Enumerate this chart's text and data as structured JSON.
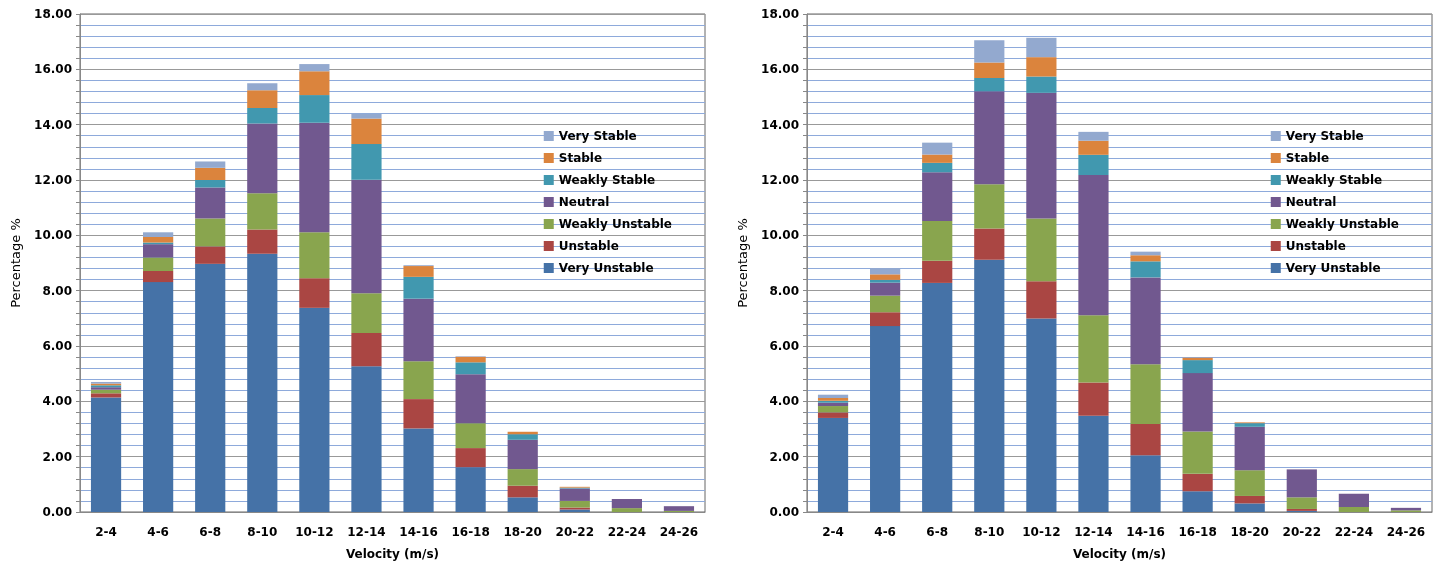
{
  "chart_data": [
    {
      "type": "bar",
      "stacked": true,
      "xlabel": "Velocity (m/s)",
      "ylabel": "Percentage %",
      "categories": [
        "2-4",
        "4-6",
        "6-8",
        "8-10",
        "10-12",
        "12-14",
        "14-16",
        "16-18",
        "18-20",
        "20-22",
        "22-24",
        "24-26"
      ],
      "series": [
        {
          "name": "Very Unstable",
          "color": "#4572a7",
          "values": [
            4.14,
            8.31,
            8.97,
            9.33,
            7.38,
            5.27,
            3.02,
            1.62,
            0.53,
            0.09,
            0,
            0
          ]
        },
        {
          "name": "Unstable",
          "color": "#aa4643",
          "values": [
            0.15,
            0.4,
            0.63,
            0.88,
            1.07,
            1.2,
            1.06,
            0.69,
            0.42,
            0.07,
            0,
            0
          ]
        },
        {
          "name": "Weakly Unstable",
          "color": "#89a54e",
          "values": [
            0.13,
            0.49,
            1.01,
            1.31,
            1.66,
            1.44,
            1.37,
            0.9,
            0.6,
            0.24,
            0.14,
            0.04
          ]
        },
        {
          "name": "Neutral",
          "color": "#71588f",
          "values": [
            0.09,
            0.48,
            1.12,
            2.52,
            3.96,
            4.1,
            2.26,
            1.77,
            1.06,
            0.45,
            0.33,
            0.17
          ]
        },
        {
          "name": "Weakly Stable",
          "color": "#4198af",
          "values": [
            0.07,
            0.06,
            0.27,
            0.56,
            1.0,
            1.29,
            0.79,
            0.43,
            0.2,
            0.03,
            0,
            0
          ]
        },
        {
          "name": "Stable",
          "color": "#db843d",
          "values": [
            0.06,
            0.2,
            0.44,
            0.64,
            0.86,
            0.92,
            0.39,
            0.2,
            0.09,
            0.03,
            0,
            0
          ]
        },
        {
          "name": "Very Stable",
          "color": "#93a9cf",
          "values": [
            0.06,
            0.17,
            0.23,
            0.26,
            0.26,
            0.17,
            0.03,
            0.02,
            0,
            0,
            0,
            0
          ]
        }
      ],
      "ylim": [
        0,
        18
      ],
      "yticks": [
        {
          "value": 0,
          "label": "0.00"
        },
        {
          "value": 0.4,
          "label": null
        },
        {
          "value": 0.8,
          "label": null
        },
        {
          "value": 1.2,
          "label": null
        },
        {
          "value": 1.6,
          "label": null
        },
        {
          "value": 2,
          "label": "2.00"
        },
        {
          "value": 2.4,
          "label": null
        },
        {
          "value": 2.8,
          "label": null
        },
        {
          "value": 3.2,
          "label": null
        },
        {
          "value": 3.6,
          "label": null
        },
        {
          "value": 4,
          "label": "4.00"
        },
        {
          "value": 4.4,
          "label": null
        },
        {
          "value": 4.8,
          "label": null
        },
        {
          "value": 5.2,
          "label": null
        },
        {
          "value": 5.6,
          "label": null
        },
        {
          "value": 6,
          "label": "6.00"
        },
        {
          "value": 6.4,
          "label": null
        },
        {
          "value": 6.8,
          "label": null
        },
        {
          "value": 7.2,
          "label": null
        },
        {
          "value": 7.6,
          "label": null
        },
        {
          "value": 8,
          "label": "8.00"
        },
        {
          "value": 8.4,
          "label": null
        },
        {
          "value": 8.8,
          "label": null
        },
        {
          "value": 9.2,
          "label": null
        },
        {
          "value": 9.6,
          "label": null
        },
        {
          "value": 10,
          "label": "10.00"
        },
        {
          "value": 10.4,
          "label": null
        },
        {
          "value": 10.8,
          "label": null
        },
        {
          "value": 11.2,
          "label": null
        },
        {
          "value": 11.6,
          "label": null
        },
        {
          "value": 12,
          "label": "12.00"
        },
        {
          "value": 12.4,
          "label": null
        },
        {
          "value": 12.8,
          "label": null
        },
        {
          "value": 13.2,
          "label": null
        },
        {
          "value": 13.6,
          "label": null
        },
        {
          "value": 14,
          "label": "14.00"
        },
        {
          "value": 14.4,
          "label": null
        },
        {
          "value": 14.8,
          "label": null
        },
        {
          "value": 15.2,
          "label": null
        },
        {
          "value": 15.6,
          "label": null
        },
        {
          "value": 16,
          "label": "16.00"
        },
        {
          "value": 16.4,
          "label": null
        },
        {
          "value": 16.8,
          "label": null
        },
        {
          "value": 17.2,
          "label": null
        },
        {
          "value": 17.6,
          "label": null
        },
        {
          "value": 18,
          "label": "18.00"
        }
      ],
      "grid": "y",
      "legend": "right"
    },
    {
      "type": "bar",
      "stacked": true,
      "xlabel": "Velocity (m/s)",
      "ylabel": "Percentage %",
      "categories": [
        "2-4",
        "4-6",
        "6-8",
        "8-10",
        "10-12",
        "12-14",
        "14-16",
        "16-18",
        "18-20",
        "20-22",
        "22-24",
        "24-26"
      ],
      "series": [
        {
          "name": "Very Unstable",
          "color": "#4572a7",
          "values": [
            3.4,
            6.72,
            8.28,
            9.12,
            6.99,
            3.48,
            2.05,
            0.75,
            0.31,
            0.04,
            0,
            0
          ]
        },
        {
          "name": "Unstable",
          "color": "#aa4643",
          "values": [
            0.2,
            0.5,
            0.8,
            1.13,
            1.35,
            1.2,
            1.13,
            0.63,
            0.27,
            0.07,
            0,
            0
          ]
        },
        {
          "name": "Weakly Unstable",
          "color": "#89a54e",
          "values": [
            0.23,
            0.6,
            1.44,
            1.6,
            2.27,
            2.43,
            2.16,
            1.53,
            0.93,
            0.42,
            0.18,
            0.06
          ]
        },
        {
          "name": "Neutral",
          "color": "#71588f",
          "values": [
            0.12,
            0.47,
            1.76,
            3.36,
            4.54,
            5.07,
            3.14,
            2.11,
            1.57,
            1.01,
            0.48,
            0.09
          ]
        },
        {
          "name": "Weakly Stable",
          "color": "#4198af",
          "values": [
            0.07,
            0.1,
            0.34,
            0.48,
            0.59,
            0.73,
            0.58,
            0.47,
            0.13,
            0,
            0,
            0
          ]
        },
        {
          "name": "Stable",
          "color": "#db843d",
          "values": [
            0.1,
            0.2,
            0.3,
            0.56,
            0.7,
            0.51,
            0.22,
            0.09,
            0.03,
            0,
            0,
            0
          ]
        },
        {
          "name": "Very Stable",
          "color": "#93a9cf",
          "values": [
            0.12,
            0.22,
            0.43,
            0.8,
            0.7,
            0.32,
            0.13,
            0.02,
            0,
            0,
            0,
            0
          ]
        }
      ],
      "ylim": [
        0,
        18
      ],
      "yticks": [
        {
          "value": 0,
          "label": "0.00"
        },
        {
          "value": 0.4,
          "label": null
        },
        {
          "value": 0.8,
          "label": null
        },
        {
          "value": 1.2,
          "label": null
        },
        {
          "value": 1.6,
          "label": null
        },
        {
          "value": 2,
          "label": "2.00"
        },
        {
          "value": 2.4,
          "label": null
        },
        {
          "value": 2.8,
          "label": null
        },
        {
          "value": 3.2,
          "label": null
        },
        {
          "value": 3.6,
          "label": null
        },
        {
          "value": 4,
          "label": "4.00"
        },
        {
          "value": 4.4,
          "label": null
        },
        {
          "value": 4.8,
          "label": null
        },
        {
          "value": 5.2,
          "label": null
        },
        {
          "value": 5.6,
          "label": null
        },
        {
          "value": 6,
          "label": "6.00"
        },
        {
          "value": 6.4,
          "label": null
        },
        {
          "value": 6.8,
          "label": null
        },
        {
          "value": 7.2,
          "label": null
        },
        {
          "value": 7.6,
          "label": null
        },
        {
          "value": 8,
          "label": "8.00"
        },
        {
          "value": 8.4,
          "label": null
        },
        {
          "value": 8.8,
          "label": null
        },
        {
          "value": 9.2,
          "label": null
        },
        {
          "value": 9.6,
          "label": null
        },
        {
          "value": 10,
          "label": "10.00"
        },
        {
          "value": 10.4,
          "label": null
        },
        {
          "value": 10.8,
          "label": null
        },
        {
          "value": 11.2,
          "label": null
        },
        {
          "value": 11.6,
          "label": null
        },
        {
          "value": 12,
          "label": "12.00"
        },
        {
          "value": 12.4,
          "label": null
        },
        {
          "value": 12.8,
          "label": null
        },
        {
          "value": 13.2,
          "label": null
        },
        {
          "value": 13.6,
          "label": null
        },
        {
          "value": 14,
          "label": "14.00"
        },
        {
          "value": 14.4,
          "label": null
        },
        {
          "value": 14.8,
          "label": null
        },
        {
          "value": 15.2,
          "label": null
        },
        {
          "value": 15.6,
          "label": null
        },
        {
          "value": 16,
          "label": "16.00"
        },
        {
          "value": 16.4,
          "label": null
        },
        {
          "value": 16.8,
          "label": null
        },
        {
          "value": 17.2,
          "label": null
        },
        {
          "value": 17.6,
          "label": null
        },
        {
          "value": 18,
          "label": "18.00"
        }
      ],
      "grid": "y",
      "legend": "right"
    }
  ]
}
